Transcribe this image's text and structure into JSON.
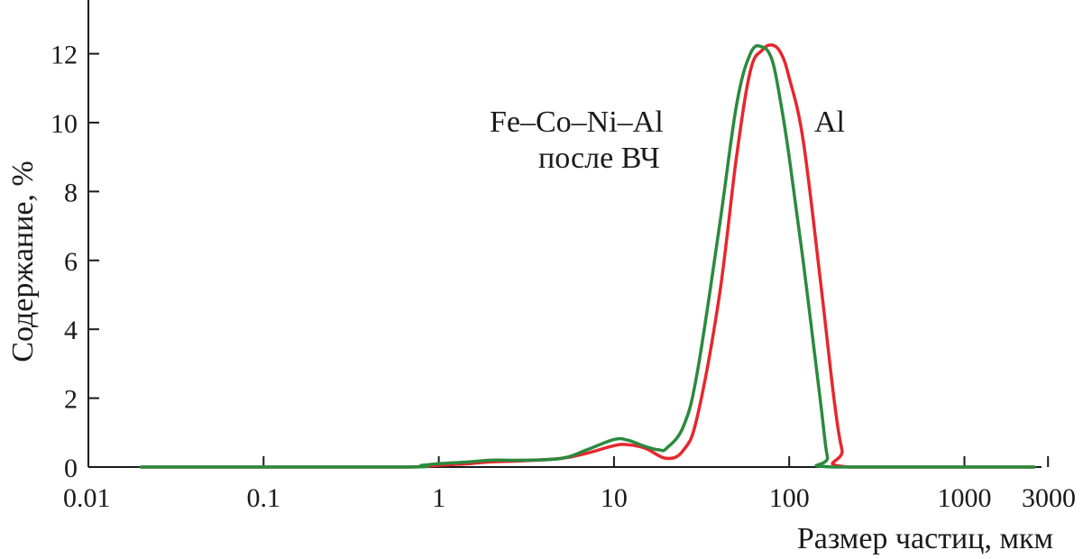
{
  "chart_data": {
    "type": "line",
    "xscale": "log",
    "xlim": [
      0.01,
      3000
    ],
    "ylim": [
      0,
      13
    ],
    "xlabel": "Размер частиц, мкм",
    "ylabel": "Содержание, %",
    "x_ticks": [
      {
        "value": 0.01,
        "label": "0.01"
      },
      {
        "value": 0.1,
        "label": "0.1"
      },
      {
        "value": 1,
        "label": "1"
      },
      {
        "value": 10,
        "label": "10"
      },
      {
        "value": 100,
        "label": "100"
      },
      {
        "value": 1000,
        "label": "1000"
      },
      {
        "value": 3000,
        "label": "3000"
      }
    ],
    "y_ticks": [
      {
        "value": 0,
        "label": "0"
      },
      {
        "value": 2,
        "label": "2"
      },
      {
        "value": 4,
        "label": "4"
      },
      {
        "value": 6,
        "label": "6"
      },
      {
        "value": 8,
        "label": "8"
      },
      {
        "value": 10,
        "label": "10"
      },
      {
        "value": 12,
        "label": "12"
      }
    ],
    "annotations": {
      "alloy_line1": "Fe–Co–Ni–Al",
      "alloy_line2": "после ВЧ",
      "al": "Al"
    },
    "series": [
      {
        "name": "Al",
        "color": "#e8262d",
        "x": [
          0.02,
          0.5,
          0.8,
          1.0,
          1.5,
          2,
          3,
          5,
          7,
          10,
          12,
          15,
          20,
          25,
          30,
          40,
          50,
          60,
          70,
          80,
          90,
          100,
          120,
          150,
          180,
          200,
          220,
          2500
        ],
        "y": [
          0,
          0,
          0.02,
          0.05,
          0.1,
          0.15,
          0.18,
          0.25,
          0.4,
          0.62,
          0.65,
          0.55,
          0.25,
          0.5,
          1.5,
          5.0,
          9.0,
          11.5,
          12.1,
          12.25,
          12.0,
          11.3,
          9.5,
          5.5,
          2.0,
          0.5,
          0,
          0
        ]
      },
      {
        "name": "Fe–Co–Ni–Al после ВЧ",
        "color": "#2a8a3e",
        "x": [
          0.02,
          0.6,
          0.8,
          1.0,
          1.5,
          2,
          3,
          5,
          7,
          10,
          12,
          15,
          18,
          20,
          25,
          30,
          40,
          50,
          60,
          70,
          80,
          90,
          100,
          120,
          150,
          165,
          180,
          2500
        ],
        "y": [
          0,
          0,
          0.05,
          0.1,
          0.15,
          0.2,
          0.2,
          0.25,
          0.5,
          0.8,
          0.78,
          0.6,
          0.5,
          0.55,
          1.2,
          2.8,
          7.0,
          10.5,
          12.0,
          12.2,
          11.8,
          10.5,
          9.0,
          6.0,
          2.0,
          0.3,
          0,
          0
        ]
      }
    ]
  }
}
